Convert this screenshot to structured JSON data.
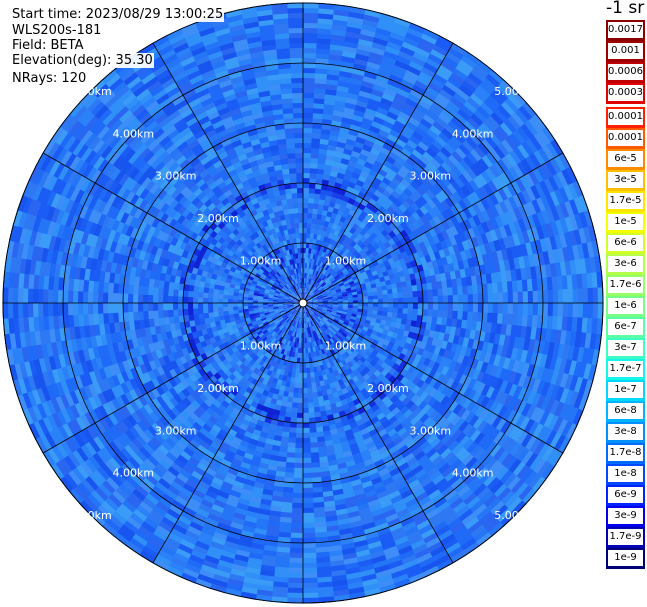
{
  "info": {
    "start_time": "Start time: 2023/08/29 13:00:25",
    "instrument": "WLS200s-181",
    "field": "Field: BETA",
    "elevation": "Elevation(deg): 35.30",
    "nrays": "NRays: 120"
  },
  "colorbar": {
    "units_label": "-1 sr",
    "labels": [
      "0.0017",
      "0.001",
      "0.0006",
      "0.0003",
      "0.00017",
      "0.0001",
      "6e-5",
      "3e-5",
      "1.7e-5",
      "1e-5",
      "6e-6",
      "3e-6",
      "1.7e-6",
      "1e-6",
      "6e-7",
      "3e-7",
      "1.7e-7",
      "1e-7",
      "6e-8",
      "3e-8",
      "1.7e-8",
      "1e-8",
      "6e-9",
      "3e-9",
      "1.7e-9",
      "1e-9"
    ],
    "colors": [
      "#8b0000",
      "#9e0000",
      "#be0000",
      "#e00000",
      "#ff2000",
      "#ff5a00",
      "#ff8c00",
      "#ffbe00",
      "#ffe600",
      "#f4ff00",
      "#d2ff28",
      "#b4ff4a",
      "#96ff68",
      "#78ff86",
      "#5affa4",
      "#3cffc4",
      "#14f5ee",
      "#00d7ff",
      "#00b4ff",
      "#0090ff",
      "#006cff",
      "#0048ff",
      "#0024ff",
      "#0000ec",
      "#0000b0",
      "#000078"
    ]
  },
  "chart_data": {
    "type": "heatmap",
    "projection": "polar (PPI)",
    "rings_km": [
      1,
      2,
      3,
      4,
      5
    ],
    "ring_labels": [
      "1.00km",
      "2.00km",
      "3.00km",
      "4.00km",
      "5.00km"
    ],
    "max_range_km": 5.0,
    "nrays": 120,
    "spokes_deg": [
      0,
      30,
      60,
      90,
      120,
      150,
      180,
      210,
      240,
      270,
      300,
      330
    ],
    "field": "BETA",
    "dominant_value_range": [
      "1e-8",
      "6e-8"
    ]
  }
}
